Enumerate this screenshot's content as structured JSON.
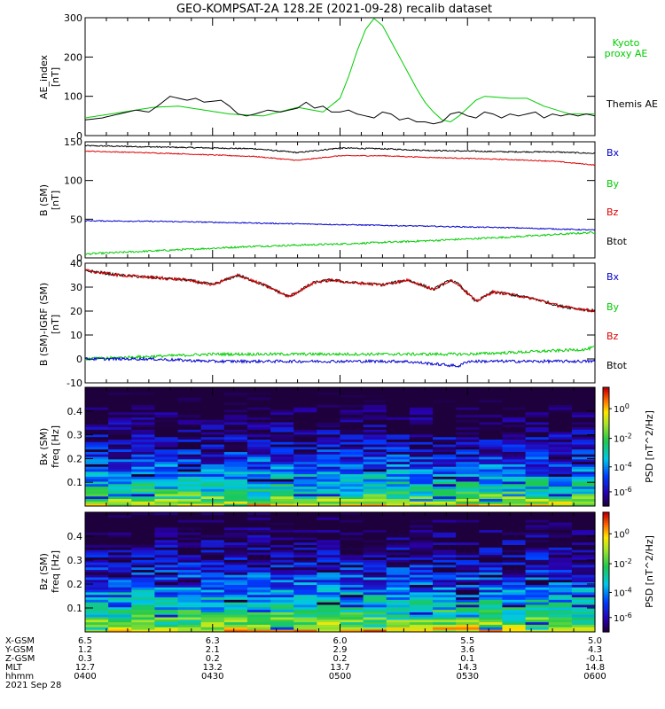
{
  "title": "GEO-KOMPSAT-2A 128.2E (2021-09-28) recalib dataset",
  "colors": {
    "black": "#000000",
    "green": "#00cc00",
    "red": "#dd0000",
    "blue": "#0000cc"
  },
  "chart_data": [
    {
      "type": "line",
      "ylabel": "AE_index",
      "yunits": "[nT]",
      "ylim": [
        0,
        300
      ],
      "yticks": [
        "0",
        "100",
        "200",
        "300"
      ],
      "xlim": [
        0,
        120
      ],
      "legend_placement": "right",
      "series": [
        {
          "name": "Kyoto proxy AE",
          "legend_lines": [
            "Kyoto",
            "proxy AE"
          ],
          "color": "#00cc00",
          "x": [
            0,
            6,
            12,
            16,
            22,
            28,
            34,
            42,
            50,
            56,
            60,
            62,
            64,
            66,
            68,
            70,
            72,
            74,
            76,
            78,
            80,
            82,
            84,
            86,
            88,
            90,
            92,
            94,
            100,
            104,
            108,
            114,
            120
          ],
          "values": [
            45,
            55,
            65,
            72,
            75,
            65,
            55,
            50,
            72,
            60,
            95,
            150,
            215,
            270,
            298,
            280,
            240,
            200,
            160,
            120,
            85,
            60,
            40,
            35,
            50,
            70,
            90,
            100,
            95,
            95,
            75,
            55,
            55
          ]
        },
        {
          "name": "Themis AE",
          "legend_lines": [
            "Themis AE"
          ],
          "color": "#000000",
          "x": [
            0,
            4,
            8,
            12,
            15,
            17,
            20,
            24,
            26,
            28,
            32,
            34,
            36,
            38,
            40,
            43,
            46,
            50,
            52,
            54,
            56,
            58,
            60,
            62,
            64,
            66,
            68,
            70,
            72,
            74,
            76,
            78,
            80,
            82,
            84,
            86,
            88,
            90,
            92,
            94,
            96,
            98,
            100,
            102,
            104,
            106,
            108,
            110,
            112,
            114,
            116,
            118,
            120
          ],
          "values": [
            40,
            45,
            55,
            65,
            60,
            75,
            100,
            90,
            95,
            85,
            90,
            75,
            55,
            50,
            55,
            65,
            60,
            70,
            85,
            70,
            75,
            60,
            60,
            65,
            55,
            50,
            45,
            60,
            55,
            40,
            45,
            35,
            35,
            30,
            35,
            55,
            60,
            50,
            45,
            60,
            55,
            45,
            55,
            50,
            55,
            60,
            45,
            55,
            50,
            55,
            50,
            55,
            50
          ]
        }
      ]
    },
    {
      "type": "line",
      "ylabel": "B (SM)",
      "yunits": "[nT]",
      "ylim": [
        0,
        150
      ],
      "yticks": [
        "0",
        "50",
        "100",
        "150"
      ],
      "xlim": [
        0,
        120
      ],
      "legend_placement": "right",
      "series": [
        {
          "name": "Bx",
          "color": "#000000",
          "x": [
            0,
            20,
            40,
            50,
            60,
            70,
            80,
            100,
            110,
            120
          ],
          "values": [
            145,
            143,
            141,
            136,
            142,
            141,
            139,
            137,
            137,
            135
          ]
        },
        {
          "name": "By",
          "color": "#00cc00",
          "x": [
            0,
            20,
            40,
            60,
            80,
            100,
            120
          ],
          "values": [
            5,
            10,
            15,
            18,
            22,
            27,
            33
          ]
        },
        {
          "name": "Bz",
          "color": "#dd0000",
          "x": [
            0,
            20,
            40,
            50,
            60,
            70,
            80,
            100,
            110,
            120
          ],
          "values": [
            138,
            135,
            131,
            126,
            132,
            132,
            130,
            127,
            125,
            120
          ]
        },
        {
          "name": "Btot",
          "color": "#0000cc",
          "x": [
            0,
            20,
            40,
            60,
            80,
            100,
            120
          ],
          "values": [
            48,
            47,
            45,
            43,
            41,
            39,
            36
          ]
        }
      ]
    },
    {
      "type": "line",
      "ylabel": "B (SM)-IGRF (SM)",
      "yunits": "[nT]",
      "ylim": [
        -10,
        40
      ],
      "yticks": [
        "-10",
        "0",
        "10",
        "20",
        "30",
        "40"
      ],
      "xlim": [
        0,
        120
      ],
      "legend_placement": "right",
      "series": [
        {
          "name": "Bx",
          "color": "#000000",
          "x": [
            0,
            8,
            16,
            24,
            30,
            36,
            42,
            48,
            54,
            58,
            62,
            70,
            76,
            82,
            86,
            88,
            92,
            96,
            100,
            106,
            112,
            116,
            120
          ],
          "values": [
            37,
            35,
            34,
            33,
            31,
            35,
            31,
            26,
            32,
            33,
            32,
            31,
            33,
            29,
            33,
            31,
            24,
            28,
            27,
            25,
            22,
            21,
            20
          ]
        },
        {
          "name": "By",
          "color": "#00cc00",
          "x": [
            0,
            15,
            30,
            45,
            60,
            75,
            90,
            105,
            118,
            120
          ],
          "values": [
            0,
            1,
            2,
            2,
            2,
            2,
            2,
            3,
            4,
            5
          ]
        },
        {
          "name": "Bz",
          "color": "#dd0000",
          "x": [
            0,
            8,
            16,
            24,
            30,
            36,
            42,
            48,
            54,
            58,
            62,
            70,
            76,
            82,
            86,
            88,
            92,
            96,
            100,
            106,
            112,
            116,
            120
          ],
          "values": [
            37,
            35,
            34,
            33,
            31,
            35,
            31,
            26,
            32,
            33,
            32,
            31,
            33,
            29,
            33,
            31,
            24,
            28,
            27,
            25,
            22,
            21,
            20
          ]
        },
        {
          "name": "Btot",
          "color": "#0000cc",
          "x": [
            0,
            15,
            30,
            45,
            60,
            75,
            88,
            90,
            105,
            120
          ],
          "values": [
            0,
            0,
            -1,
            -1,
            -1,
            -1,
            -3,
            -1,
            -1,
            -1
          ]
        }
      ]
    },
    {
      "type": "heatmap",
      "ylabel": "Bx (SM)",
      "yunits": "freq [Hz]",
      "ylim": [
        0,
        0.5
      ],
      "yticks": [
        "0.1",
        "0.2",
        "0.3",
        "0.4"
      ],
      "colorbar_label": "PSD [nT^2/Hz]",
      "colorbar_ticks": [
        "10^0",
        "10^-2",
        "10^-4",
        "10^-6"
      ]
    },
    {
      "type": "heatmap",
      "ylabel": "Bz (SM)",
      "yunits": "freq [Hz]",
      "ylim": [
        0,
        0.5
      ],
      "yticks": [
        "0.1",
        "0.2",
        "0.3",
        "0.4"
      ],
      "colorbar_label": "PSD [nT^2/Hz]",
      "colorbar_ticks": [
        "10^0",
        "10^-2",
        "10^-4",
        "10^-6"
      ]
    }
  ],
  "xaxis_table": {
    "rows": [
      {
        "label": "X-GSM",
        "values": [
          "6.5",
          "6.3",
          "6.0",
          "5.5",
          "5.0"
        ]
      },
      {
        "label": "Y-GSM",
        "values": [
          "1.2",
          "2.1",
          "2.9",
          "3.6",
          "4.3"
        ]
      },
      {
        "label": "Z-GSM",
        "values": [
          "0.3",
          "0.2",
          "0.2",
          "0.1",
          "-0.1"
        ]
      },
      {
        "label": "MLT",
        "values": [
          "12.7",
          "13.2",
          "13.7",
          "14.3",
          "14.8"
        ]
      },
      {
        "label": "hhmm",
        "values": [
          "0400",
          "0430",
          "0500",
          "0530",
          "0600"
        ]
      }
    ],
    "date": "2021 Sep 28"
  }
}
